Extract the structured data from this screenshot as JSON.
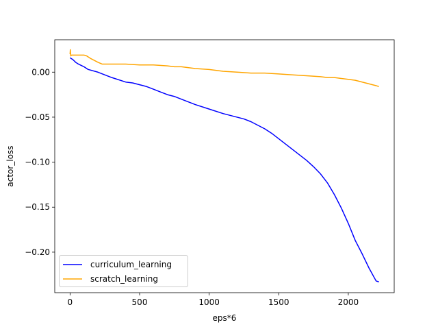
{
  "chart_data": {
    "type": "line",
    "title": "",
    "xlabel": "eps*6",
    "ylabel": "actor_loss",
    "xlim": [
      -110,
      2330
    ],
    "ylim": [
      -0.245,
      0.036
    ],
    "xticks": [
      0,
      500,
      1000,
      1500,
      2000
    ],
    "xtick_labels": [
      "0",
      "500",
      "1000",
      "1500",
      "2000"
    ],
    "yticks": [
      0.0,
      -0.05,
      -0.1,
      -0.15,
      -0.2
    ],
    "ytick_labels": [
      "0.00",
      "−0.05",
      "−0.10",
      "−0.15",
      "−0.20"
    ],
    "grid": false,
    "legend_position": "lower-left",
    "series": [
      {
        "name": "curriculum_learning",
        "color": "#0000ff",
        "x": [
          0,
          10,
          20,
          40,
          60,
          100,
          130,
          200,
          300,
          400,
          450,
          500,
          550,
          600,
          650,
          700,
          750,
          800,
          900,
          1000,
          1100,
          1200,
          1250,
          1300,
          1350,
          1400,
          1450,
          1500,
          1550,
          1600,
          1650,
          1700,
          1750,
          1800,
          1850,
          1900,
          1950,
          2000,
          2050,
          2100,
          2150,
          2200,
          2220
        ],
        "y": [
          0.016,
          0.015,
          0.014,
          0.011,
          0.009,
          0.006,
          0.003,
          0.0,
          -0.006,
          -0.011,
          -0.012,
          -0.014,
          -0.016,
          -0.019,
          -0.022,
          -0.025,
          -0.027,
          -0.03,
          -0.036,
          -0.041,
          -0.046,
          -0.05,
          -0.052,
          -0.055,
          -0.059,
          -0.063,
          -0.068,
          -0.074,
          -0.08,
          -0.086,
          -0.092,
          -0.098,
          -0.105,
          -0.113,
          -0.123,
          -0.136,
          -0.151,
          -0.168,
          -0.187,
          -0.202,
          -0.218,
          -0.232,
          -0.233
        ]
      },
      {
        "name": "scratch_learning",
        "color": "#ffa500",
        "x": [
          0,
          2,
          5,
          10,
          20,
          50,
          100,
          120,
          150,
          200,
          230,
          300,
          400,
          500,
          600,
          700,
          750,
          800,
          900,
          1000,
          1100,
          1200,
          1300,
          1400,
          1500,
          1600,
          1700,
          1800,
          1850,
          1900,
          1950,
          2000,
          2050,
          2100,
          2150,
          2200,
          2220
        ],
        "y": [
          0.02,
          0.025,
          0.018,
          0.019,
          0.019,
          0.019,
          0.019,
          0.018,
          0.015,
          0.011,
          0.009,
          0.009,
          0.009,
          0.008,
          0.008,
          0.007,
          0.006,
          0.006,
          0.004,
          0.003,
          0.001,
          0.0,
          -0.001,
          -0.001,
          -0.002,
          -0.003,
          -0.004,
          -0.005,
          -0.006,
          -0.006,
          -0.007,
          -0.008,
          -0.009,
          -0.011,
          -0.013,
          -0.015,
          -0.016
        ]
      }
    ]
  }
}
